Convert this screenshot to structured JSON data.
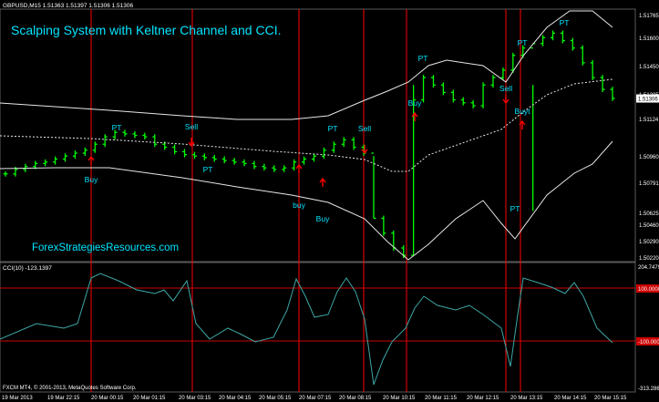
{
  "window": {
    "symbol_header": "GBPUSD,M15  1.51363 1.51397 1.51306 1.51306",
    "title": "Scalping System with Keltner Channel and CCI.",
    "watermark": "ForexStrategiesResources.com",
    "cci_header": "CCI(10) -123.1397",
    "footer": "FXCM MT4, © 2001-2013, MetaQuotes Software Corp."
  },
  "price_axis": {
    "labels": [
      "1.51765",
      "1.51600",
      "1.51450",
      "1.51285",
      "1.51124",
      "1.50960",
      "1.50791",
      "1.50625",
      "1.50460",
      "1.50290",
      "1.50220"
    ],
    "current_price": "1.51306"
  },
  "cci_axis": {
    "labels": [
      "204.7479",
      "100.0000",
      "-100.0000",
      "-313.2863"
    ],
    "levels": [
      100,
      -100
    ],
    "range": [
      -313.2863,
      204.7479
    ]
  },
  "time_axis": {
    "labels": [
      "19 Mar 2013",
      "19 Mar 22:15",
      "20 Mar 00:15",
      "20 Mar 01:15",
      "20 Mar 03:15",
      "20 Mar 04:15",
      "20 Mar 05:15",
      "20 Mar 07:15",
      "20 Mar 08:15",
      "20 Mar 10:15",
      "20 Mar 11:15",
      "20 Mar 12:15",
      "20 Mar 13:15",
      "20 Mar 14:15",
      "20 Mar 15:15"
    ]
  },
  "signals": [
    {
      "text": "Buy",
      "kind": "buy",
      "color": "#00e5ff"
    },
    {
      "text": "PT",
      "kind": "pt",
      "color": "#00e5ff"
    },
    {
      "text": "Sell",
      "kind": "sell",
      "color": "#00e5ff"
    },
    {
      "text": "PT",
      "kind": "pt",
      "color": "#00e5ff"
    },
    {
      "text": "buy",
      "kind": "buy",
      "color": "#00e5ff"
    },
    {
      "text": "Buy",
      "kind": "buy",
      "color": "#00e5ff"
    },
    {
      "text": "PT",
      "kind": "pt",
      "color": "#00e5ff"
    },
    {
      "text": "Sell",
      "kind": "sell",
      "color": "#00e5ff"
    },
    {
      "text": "Buy",
      "kind": "buy",
      "color": "#00e5ff"
    },
    {
      "text": "PT",
      "kind": "pt",
      "color": "#00e5ff"
    },
    {
      "text": "Sell",
      "kind": "sell",
      "color": "#00e5ff"
    },
    {
      "text": "Buyt",
      "kind": "buy",
      "color": "#00e5ff"
    },
    {
      "text": "PT",
      "kind": "pt",
      "color": "#00e5ff"
    },
    {
      "text": "PT",
      "kind": "pt",
      "color": "#00e5ff"
    },
    {
      "text": "PT",
      "kind": "pt",
      "color": "#00e5ff"
    }
  ],
  "colors": {
    "background": "#000000",
    "bar": "#00ff00",
    "channel": "#ffffff",
    "vline": "#ff0000",
    "cci": "#3fa7a7",
    "label": "#00e5ff",
    "arrow": "#ff0000"
  },
  "chart_data": {
    "type": "line",
    "title": "Scalping System with Keltner Channel and CCI.",
    "xlabel": "",
    "ylabel": "",
    "ylim": [
      1.5022,
      1.519
    ],
    "price_bars_close": [
      1.508,
      1.5083,
      1.5085,
      1.5087,
      1.5088,
      1.509,
      1.5092,
      1.5094,
      1.5096,
      1.51,
      1.5105,
      1.5108,
      1.5107,
      1.5106,
      1.5105,
      1.51,
      1.5098,
      1.5095,
      1.5093,
      1.5092,
      1.5091,
      1.509,
      1.5089,
      1.5088,
      1.5087,
      1.5085,
      1.5084,
      1.5083,
      1.5084,
      1.5088,
      1.509,
      1.5092,
      1.5096,
      1.51,
      1.5103,
      1.5098,
      1.5094,
      1.505,
      1.504,
      1.503,
      1.5025,
      1.513,
      1.5145,
      1.514,
      1.5135,
      1.513,
      1.5128,
      1.5126,
      1.514,
      1.5145,
      1.515,
      1.516,
      1.5165,
      1.5168,
      1.5172,
      1.5175,
      1.517,
      1.5165,
      1.5155,
      1.5145,
      1.5137,
      1.5131
    ]
  }
}
